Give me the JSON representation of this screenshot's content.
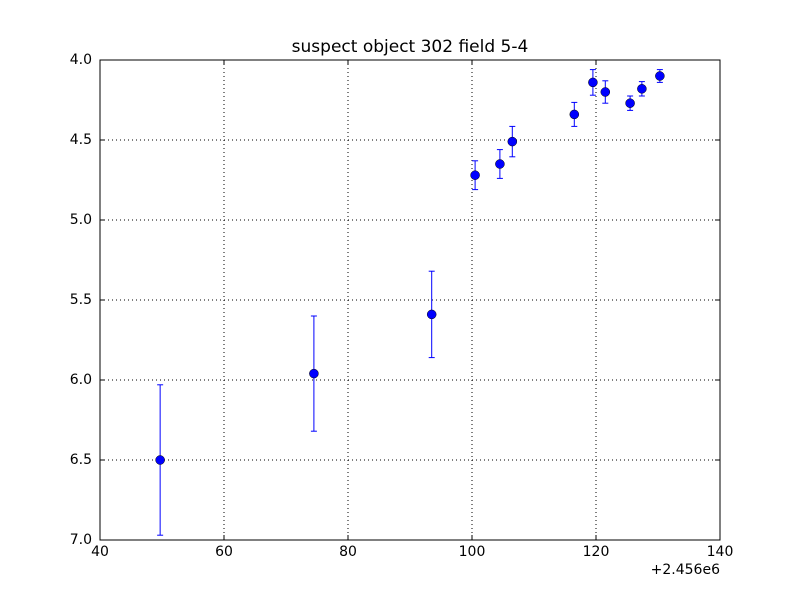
{
  "chart_data": {
    "type": "errorbar",
    "title": "suspect object 302 field 5-4",
    "x_offset_label": "+2.456e6",
    "x": [
      49.7,
      74.5,
      93.5,
      100.5,
      104.5,
      106.5,
      116.5,
      119.5,
      121.5,
      125.5,
      127.4,
      130.3
    ],
    "values": [
      6.5,
      5.96,
      5.59,
      4.72,
      4.65,
      4.51,
      4.34,
      4.14,
      4.2,
      4.27,
      4.18,
      4.1
    ],
    "errors": [
      0.47,
      0.36,
      0.27,
      0.09,
      0.09,
      0.095,
      0.075,
      0.08,
      0.07,
      0.045,
      0.045,
      0.04
    ],
    "color": "#0000ff",
    "xlim": [
      40,
      140
    ],
    "xticks": [
      40,
      60,
      80,
      100,
      120,
      140
    ],
    "ylim": [
      7,
      4
    ],
    "yticks": [
      {
        "value": 4,
        "label": "4.0"
      },
      {
        "value": 4.5,
        "label": "4.5"
      },
      {
        "value": 5,
        "label": "5.0"
      },
      {
        "value": 5.5,
        "label": "5.5"
      },
      {
        "value": 6,
        "label": "6.0"
      },
      {
        "value": 6.5,
        "label": "6.5"
      },
      {
        "value": 7,
        "label": "7.0"
      }
    ],
    "grid": true
  }
}
